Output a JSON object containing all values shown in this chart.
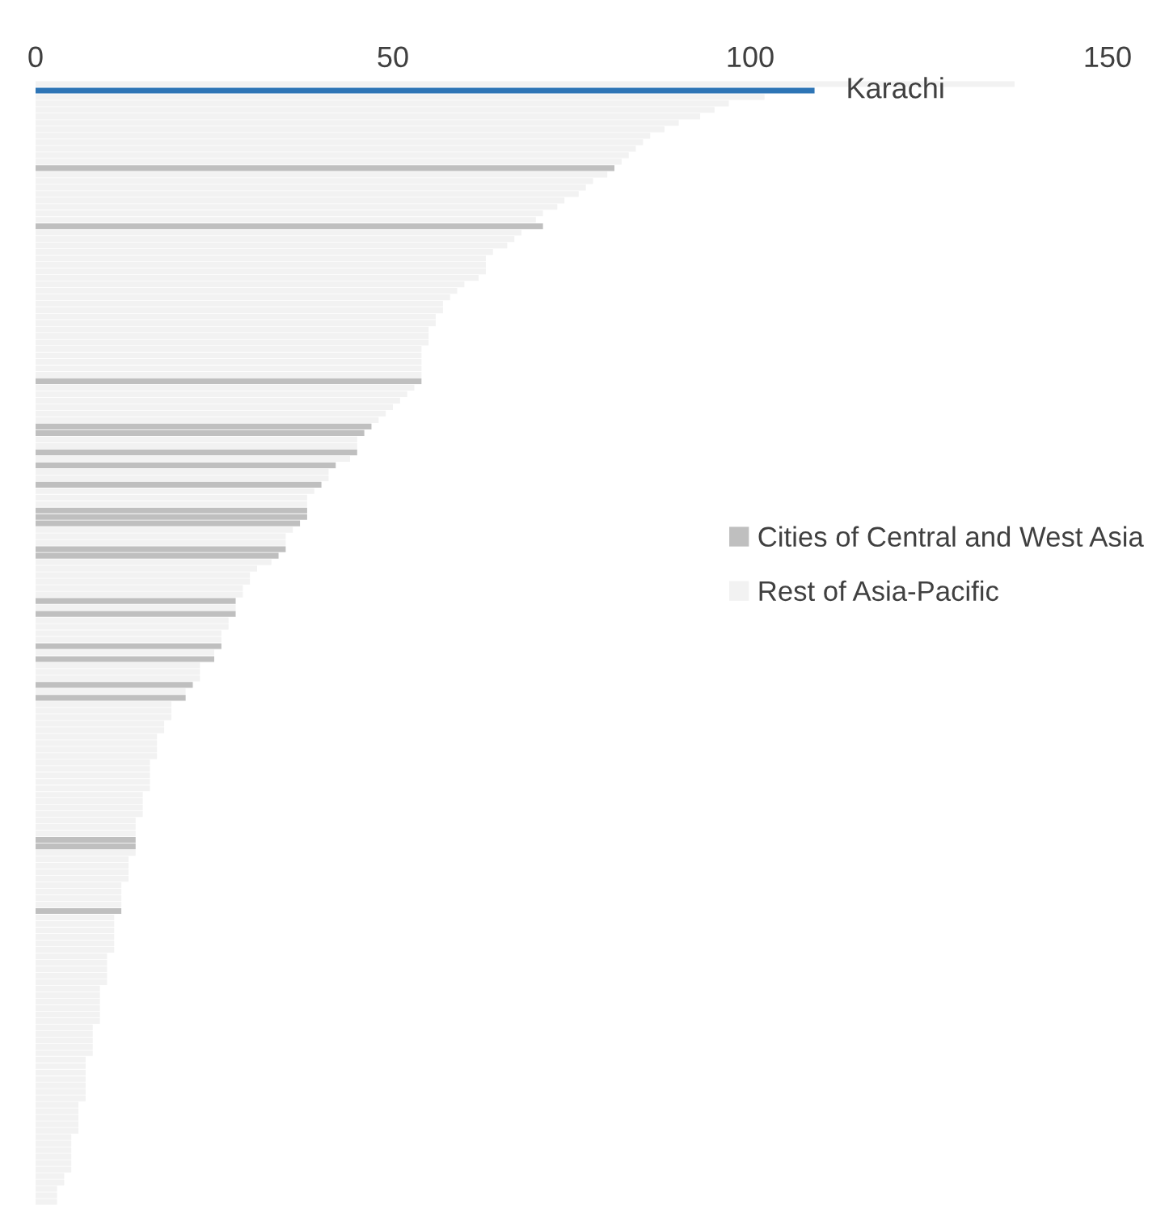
{
  "chart_data": {
    "type": "bar",
    "orientation": "horizontal",
    "stacked": true,
    "categories": [
      null,
      null,
      null,
      null,
      null,
      null,
      null,
      null,
      null,
      null,
      null,
      null,
      null,
      null,
      null,
      null,
      null,
      null,
      null,
      null,
      null,
      null,
      null,
      null,
      null,
      null,
      null,
      null,
      null,
      null,
      null,
      null,
      null,
      null,
      null,
      null,
      null,
      null,
      null,
      null,
      null,
      null,
      null,
      null,
      null,
      null,
      null,
      null,
      null,
      null,
      null,
      null,
      null,
      null,
      null,
      null,
      null,
      null,
      null,
      null,
      null,
      null,
      null,
      null,
      null,
      null,
      null,
      null,
      null,
      null,
      null,
      null,
      null,
      null,
      null,
      null,
      null,
      null,
      null,
      null,
      null,
      null,
      null,
      null,
      null,
      null,
      null,
      null,
      null,
      null,
      null,
      null,
      null,
      null,
      null,
      null,
      null,
      null,
      null,
      null,
      null,
      null,
      null,
      null,
      null,
      null,
      null,
      null,
      null,
      null,
      null,
      null,
      null,
      null,
      null,
      null,
      null,
      null,
      null,
      null,
      null,
      null,
      null,
      null,
      null,
      null,
      null,
      null,
      null,
      null,
      null,
      null,
      null,
      null,
      null,
      null,
      null,
      null,
      null,
      null,
      null,
      null,
      null,
      null,
      null,
      null,
      null,
      null,
      null,
      null,
      null,
      null,
      null,
      null,
      null,
      null,
      null,
      null,
      null,
      null,
      null,
      null,
      null,
      null,
      null,
      null,
      null,
      null,
      null,
      null,
      null,
      null,
      null,
      null
    ],
    "series": [
      {
        "name": "Cities of Central and West Asia",
        "color": "#bfbfbf",
        "values": [
          0,
          0,
          0,
          0,
          0,
          0,
          0,
          0,
          0,
          0,
          0,
          0,
          0,
          81,
          0,
          0,
          0,
          0,
          0,
          0,
          0,
          0,
          71,
          0,
          0,
          0,
          0,
          0,
          0,
          0,
          0,
          0,
          0,
          0,
          0,
          0,
          0,
          0,
          0,
          0,
          0,
          0,
          0,
          0,
          0,
          0,
          54,
          0,
          0,
          0,
          0,
          0,
          0,
          47,
          46,
          0,
          0,
          45,
          0,
          42,
          0,
          0,
          40,
          0,
          0,
          0,
          38,
          38,
          37,
          0,
          0,
          0,
          35,
          34,
          0,
          0,
          0,
          0,
          0,
          0,
          28,
          0,
          28,
          0,
          0,
          0,
          0,
          26,
          0,
          25,
          0,
          0,
          0,
          22,
          0,
          21,
          0,
          0,
          0,
          0,
          0,
          0,
          0,
          0,
          0,
          0,
          0,
          0,
          0,
          0,
          0,
          0,
          0,
          0,
          0,
          0,
          0,
          14,
          14,
          0,
          0,
          0,
          0,
          0,
          0,
          0,
          0,
          0,
          12,
          0,
          0,
          0,
          0,
          0,
          0,
          0,
          0,
          0,
          0,
          0,
          0,
          0,
          0,
          0,
          0,
          0,
          0,
          0,
          0,
          0,
          0,
          0,
          0,
          0,
          0,
          0,
          0,
          0,
          0,
          0,
          0,
          0,
          0,
          0,
          0,
          0,
          0,
          0,
          0,
          0,
          0,
          0,
          0,
          0
        ]
      },
      {
        "name": "Rest of Asia-Pacific",
        "color": "#f2f2f2",
        "values": [
          137,
          0,
          102,
          97,
          95,
          93,
          90,
          88,
          86,
          85,
          84,
          83,
          82,
          0,
          80,
          78,
          77,
          76,
          74,
          73,
          71,
          70,
          0,
          68,
          67,
          66,
          64,
          63,
          63,
          63,
          62,
          60,
          59,
          58,
          57,
          57,
          56,
          56,
          55,
          55,
          55,
          54,
          54,
          54,
          54,
          54,
          0,
          53,
          52,
          51,
          50,
          49,
          48,
          0,
          0,
          45,
          45,
          0,
          44,
          0,
          41,
          41,
          0,
          39,
          38,
          38,
          0,
          0,
          0,
          36,
          35,
          35,
          0,
          0,
          33,
          31,
          30,
          30,
          29,
          29,
          0,
          28,
          0,
          27,
          27,
          26,
          26,
          0,
          25,
          0,
          23,
          23,
          23,
          0,
          21,
          0,
          19,
          19,
          19,
          18,
          18,
          17,
          17,
          17,
          17,
          16,
          16,
          16,
          16,
          16,
          15,
          15,
          15,
          15,
          14,
          14,
          14,
          0,
          0,
          14,
          13,
          13,
          13,
          13,
          12,
          12,
          12,
          12,
          0,
          11,
          11,
          11,
          11,
          11,
          11,
          10,
          10,
          10,
          10,
          10,
          9,
          9,
          9,
          9,
          9,
          9,
          8,
          8,
          8,
          8,
          8,
          7,
          7,
          7,
          7,
          7,
          7,
          7,
          6,
          6,
          6,
          6,
          6,
          5,
          5,
          5,
          5,
          5,
          5,
          4,
          4,
          3,
          3,
          3
        ]
      },
      {
        "color": "#2e75b6",
        "values": [
          0,
          109,
          0,
          0,
          0,
          0,
          0,
          0,
          0,
          0,
          0,
          0,
          0,
          0,
          0,
          0,
          0,
          0,
          0,
          0,
          0,
          0,
          0,
          0,
          0,
          0,
          0,
          0,
          0,
          0,
          0,
          0,
          0,
          0,
          0,
          0,
          0,
          0,
          0,
          0,
          0,
          0,
          0,
          0,
          0,
          0,
          0,
          0,
          0,
          0,
          0,
          0,
          0,
          0,
          0,
          0,
          0,
          0,
          0,
          0,
          0,
          0,
          0,
          0,
          0,
          0,
          0,
          0,
          0,
          0,
          0,
          0,
          0,
          0,
          0,
          0,
          0,
          0,
          0,
          0,
          0,
          0,
          0,
          0,
          0,
          0,
          0,
          0,
          0,
          0,
          0,
          0,
          0,
          0,
          0,
          0,
          0,
          0,
          0,
          0,
          0,
          0,
          0,
          0,
          0,
          0,
          0,
          0,
          0,
          0,
          0,
          0,
          0,
          0,
          0,
          0,
          0,
          0,
          0,
          0,
          0,
          0,
          0,
          0,
          0,
          0,
          0,
          0,
          0,
          0,
          0,
          0,
          0,
          0,
          0,
          0,
          0,
          0,
          0,
          0,
          0,
          0,
          0,
          0,
          0,
          0,
          0,
          0,
          0,
          0,
          0,
          0,
          0,
          0,
          0,
          0,
          0,
          0,
          0,
          0,
          0,
          0,
          0,
          0,
          0,
          0,
          0,
          0,
          0,
          0,
          0,
          0,
          0,
          0
        ]
      }
    ],
    "xlim": [
      0,
      150
    ],
    "xticks": [
      0,
      50,
      100,
      150
    ],
    "tick_labels": "x",
    "grid": false,
    "legend": "right",
    "annotations": [
      {
        "text": "Karachi",
        "x": 109
      }
    ]
  }
}
